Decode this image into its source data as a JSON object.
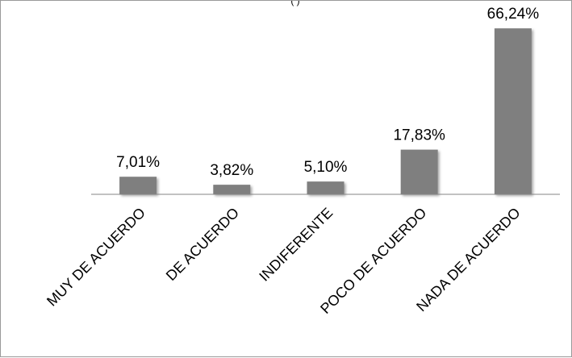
{
  "top_note": "(                                          )",
  "chart_data": {
    "type": "bar",
    "categories": [
      "MUY DE ACUERDO",
      "DE ACUERDO",
      "INDIFERENTE",
      "POCO DE ACUERDO",
      "NADA DE ACUERDO"
    ],
    "values": [
      7.01,
      3.82,
      5.1,
      17.83,
      66.24
    ],
    "data_labels": [
      "7,01%",
      "3,82%",
      "5,10%",
      "17,83%",
      "66,24%"
    ],
    "title": "",
    "xlabel": "",
    "ylabel": "",
    "ylim": [
      0,
      70
    ],
    "grid": false,
    "legend": "none",
    "bar_color": "#7f7f7f",
    "axis_color": "#868686"
  }
}
